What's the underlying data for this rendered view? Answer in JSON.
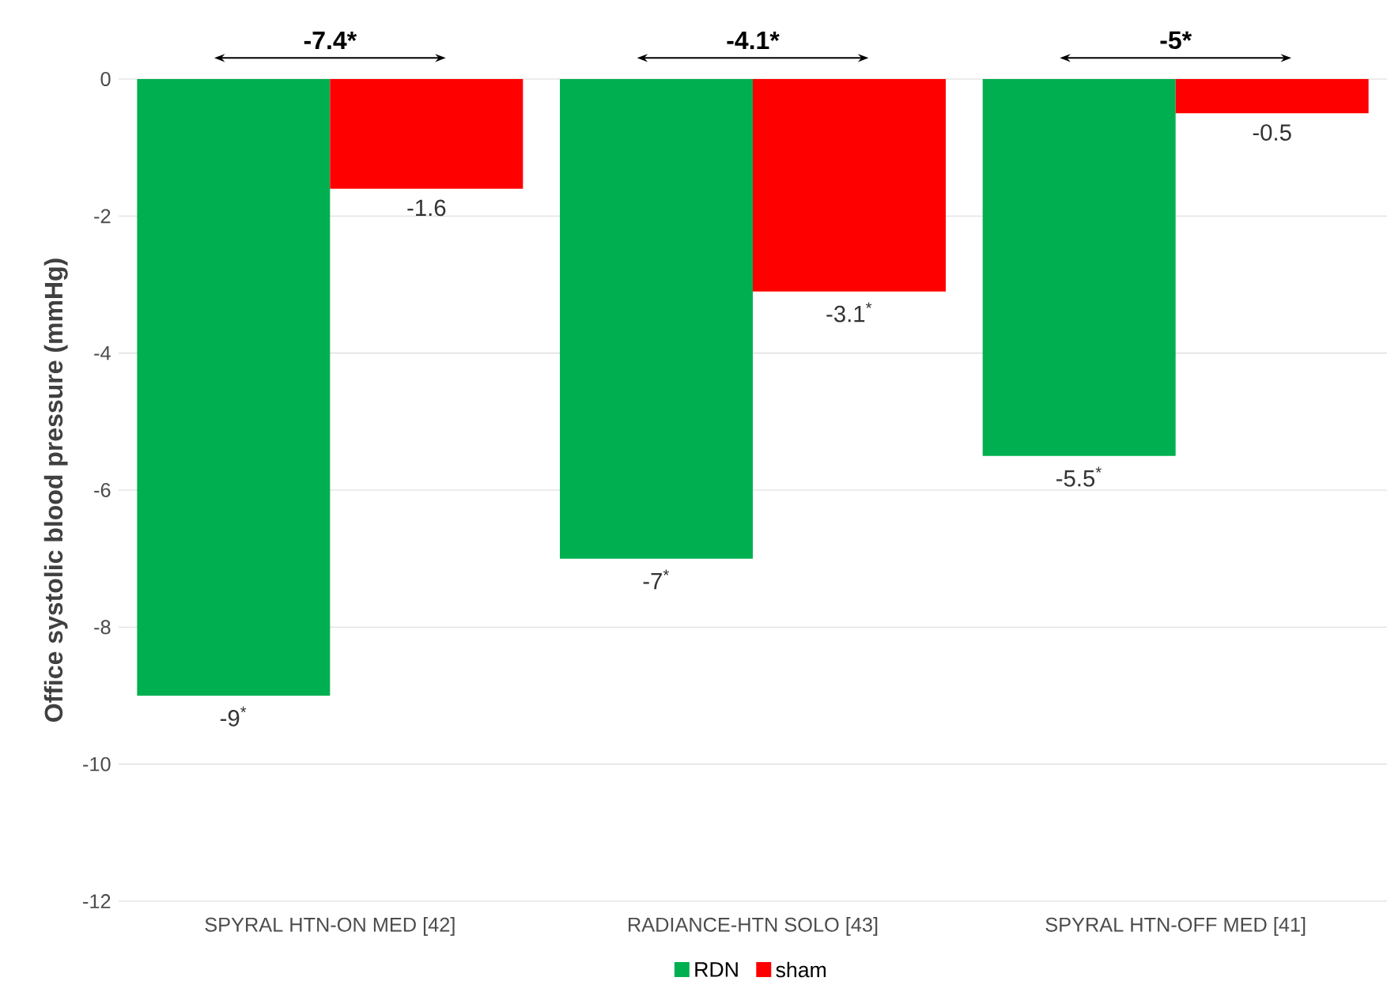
{
  "chart_data": {
    "type": "bar",
    "ylabel": "Office systolic blood pressure (mmHg)",
    "categories": [
      "SPYRAL HTN-ON MED [42]",
      "RADIANCE-HTN SOLO [43]",
      "SPYRAL HTN-OFF MED [41]"
    ],
    "series": [
      {
        "name": "RDN",
        "color": "#00b050",
        "values": [
          -9,
          -7,
          -5.5
        ],
        "value_labels": [
          "-9$^{*}$",
          "-7$^{*}$",
          "-5.5$^{*}$"
        ]
      },
      {
        "name": "sham",
        "color": "#ff0000",
        "values": [
          -1.6,
          -3.1,
          -0.5
        ],
        "value_labels": [
          "-1.6",
          "-3.1$^{*}$",
          "-0.5"
        ]
      }
    ],
    "ylim": [
      -12,
      0
    ],
    "yticks": [
      -12,
      -10,
      -8,
      -6,
      -4,
      -2,
      0
    ],
    "grid": "y",
    "legend": "bottom",
    "annotations": [
      "-7.4*",
      "-4.1*",
      "-5*"
    ]
  }
}
